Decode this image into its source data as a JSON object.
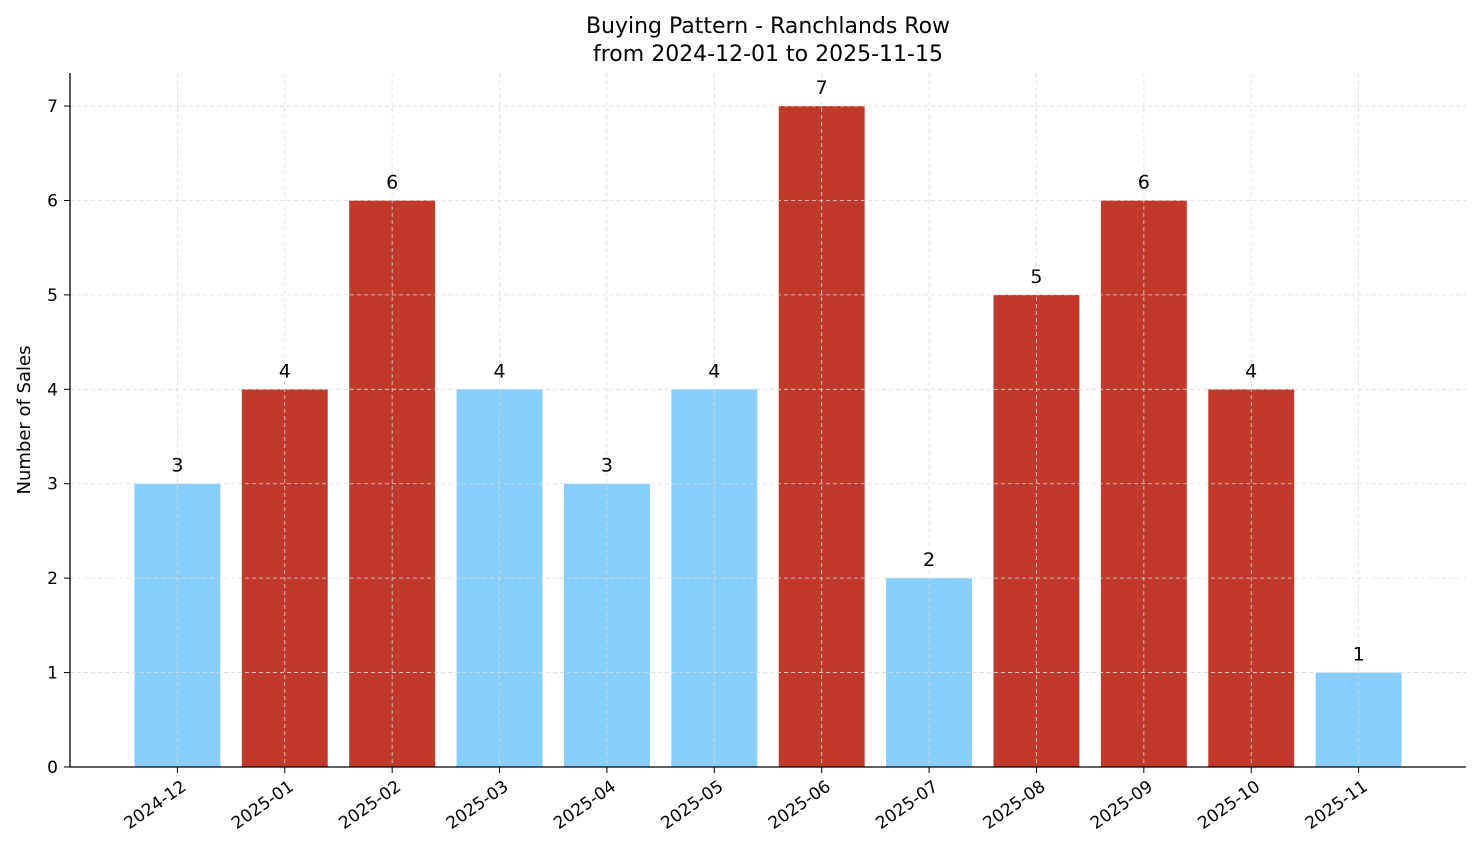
{
  "chart_data": {
    "type": "bar",
    "title": "Buying Pattern - Ranchlands Row",
    "subtitle": "from 2024-12-01 to 2025-11-15",
    "xlabel": "",
    "ylabel": "Number of Sales",
    "categories": [
      "2024-12",
      "2025-01",
      "2025-02",
      "2025-03",
      "2025-04",
      "2025-05",
      "2025-06",
      "2025-07",
      "2025-08",
      "2025-09",
      "2025-10",
      "2025-11"
    ],
    "values": [
      3,
      4,
      6,
      4,
      3,
      4,
      7,
      2,
      5,
      6,
      4,
      1
    ],
    "bar_colors": [
      "#87CEFA",
      "#C0392B",
      "#C0392B",
      "#87CEFA",
      "#87CEFA",
      "#87CEFA",
      "#C0392B",
      "#87CEFA",
      "#C0392B",
      "#C0392B",
      "#C0392B",
      "#87CEFA"
    ],
    "yticks": [
      0,
      1,
      2,
      3,
      4,
      5,
      6,
      7
    ],
    "ylim": [
      0,
      7.35
    ],
    "grid": true,
    "data_labels": true
  }
}
